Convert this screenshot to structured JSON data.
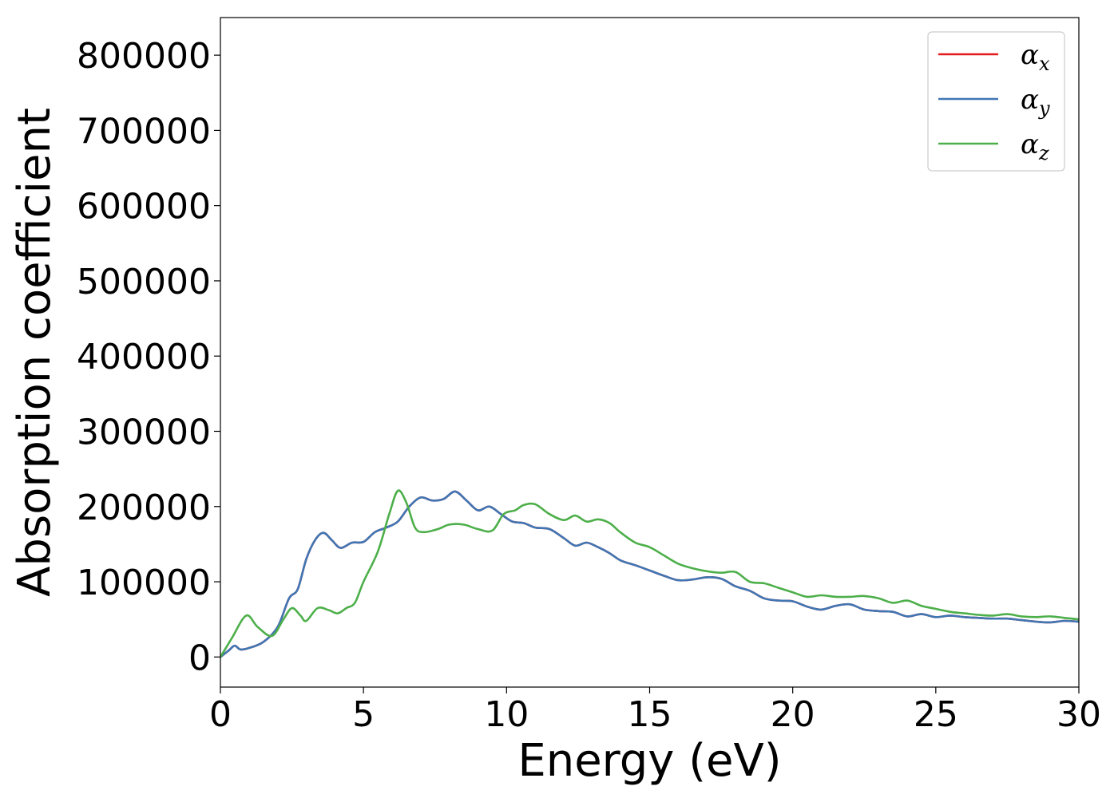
{
  "chart_data": {
    "type": "line",
    "title": "",
    "xlabel": "Energy (eV)",
    "ylabel": "Absorption coefficient",
    "xlim": [
      0,
      30
    ],
    "ylim": [
      -40000,
      850000
    ],
    "xticks": [
      0,
      5,
      10,
      15,
      20,
      25,
      30
    ],
    "yticks": [
      0,
      100000,
      200000,
      300000,
      400000,
      500000,
      600000,
      700000,
      800000
    ],
    "grid": false,
    "legend_position": "top-right",
    "series": [
      {
        "name": "αx",
        "legend_symbol": "α",
        "legend_sub": "x",
        "color": "#e41a1c",
        "x": [
          0,
          0.3,
          0.5,
          0.7,
          1.0,
          1.5,
          2.0,
          2.4,
          2.7,
          3.0,
          3.3,
          3.6,
          3.9,
          4.2,
          4.6,
          5.0,
          5.4,
          5.8,
          6.2,
          6.6,
          7.0,
          7.4,
          7.8,
          8.2,
          8.6,
          9.0,
          9.4,
          9.8,
          10.2,
          10.6,
          11.0,
          11.5,
          12.0,
          12.4,
          12.8,
          13.2,
          13.6,
          14.0,
          14.5,
          15.0,
          15.5,
          16.0,
          16.5,
          17.0,
          17.5,
          18.0,
          18.5,
          19.0,
          19.5,
          20.0,
          20.5,
          21.0,
          21.5,
          22.0,
          22.5,
          23.0,
          23.5,
          24.0,
          24.5,
          25.0,
          25.5,
          26.0,
          26.5,
          27.0,
          27.5,
          28.0,
          28.5,
          29.0,
          29.5,
          30.0
        ],
        "y": [
          0,
          9000,
          15000,
          10000,
          12000,
          20000,
          40000,
          78000,
          90000,
          130000,
          155000,
          165000,
          155000,
          145000,
          152000,
          153000,
          166000,
          172000,
          180000,
          200000,
          212000,
          208000,
          210000,
          220000,
          208000,
          195000,
          200000,
          190000,
          180000,
          178000,
          172000,
          170000,
          158000,
          148000,
          152000,
          146000,
          138000,
          128000,
          122000,
          115000,
          108000,
          102000,
          103000,
          106000,
          104000,
          94000,
          88000,
          78000,
          75000,
          74000,
          67000,
          63000,
          68000,
          70000,
          63000,
          61000,
          60000,
          54000,
          57000,
          53000,
          55000,
          53000,
          52000,
          51000,
          51000,
          49000,
          47000,
          46000,
          48000,
          47000
        ]
      },
      {
        "name": "αy",
        "legend_symbol": "α",
        "legend_sub": "y",
        "color": "#3f76b4",
        "x": [
          0,
          0.3,
          0.5,
          0.7,
          1.0,
          1.5,
          2.0,
          2.4,
          2.7,
          3.0,
          3.3,
          3.6,
          3.9,
          4.2,
          4.6,
          5.0,
          5.4,
          5.8,
          6.2,
          6.6,
          7.0,
          7.4,
          7.8,
          8.2,
          8.6,
          9.0,
          9.4,
          9.8,
          10.2,
          10.6,
          11.0,
          11.5,
          12.0,
          12.4,
          12.8,
          13.2,
          13.6,
          14.0,
          14.5,
          15.0,
          15.5,
          16.0,
          16.5,
          17.0,
          17.5,
          18.0,
          18.5,
          19.0,
          19.5,
          20.0,
          20.5,
          21.0,
          21.5,
          22.0,
          22.5,
          23.0,
          23.5,
          24.0,
          24.5,
          25.0,
          25.5,
          26.0,
          26.5,
          27.0,
          27.5,
          28.0,
          28.5,
          29.0,
          29.5,
          30.0
        ],
        "y": [
          0,
          9000,
          15000,
          10000,
          12000,
          20000,
          40000,
          78000,
          90000,
          130000,
          155000,
          165000,
          155000,
          145000,
          152000,
          153000,
          166000,
          172000,
          180000,
          200000,
          212000,
          208000,
          210000,
          220000,
          208000,
          195000,
          200000,
          190000,
          180000,
          178000,
          172000,
          170000,
          158000,
          148000,
          152000,
          146000,
          138000,
          128000,
          122000,
          115000,
          108000,
          102000,
          103000,
          106000,
          104000,
          94000,
          88000,
          78000,
          75000,
          74000,
          67000,
          63000,
          68000,
          70000,
          63000,
          61000,
          60000,
          54000,
          57000,
          53000,
          55000,
          53000,
          52000,
          51000,
          51000,
          49000,
          47000,
          46000,
          48000,
          47000
        ]
      },
      {
        "name": "αz",
        "legend_symbol": "α",
        "legend_sub": "z",
        "color": "#4daf4a",
        "x": [
          0,
          0.4,
          0.9,
          1.3,
          1.8,
          2.2,
          2.5,
          2.8,
          3.0,
          3.4,
          3.8,
          4.1,
          4.4,
          4.7,
          5.0,
          5.5,
          5.9,
          6.2,
          6.5,
          6.8,
          7.1,
          7.6,
          8.0,
          8.5,
          9.0,
          9.5,
          9.9,
          10.3,
          10.6,
          11.0,
          11.5,
          12.0,
          12.4,
          12.8,
          13.2,
          13.6,
          14.0,
          14.5,
          15.0,
          15.5,
          16.0,
          16.5,
          17.0,
          17.5,
          18.0,
          18.5,
          19.0,
          19.5,
          20.0,
          20.5,
          21.0,
          21.5,
          22.0,
          22.5,
          23.0,
          23.5,
          24.0,
          24.5,
          25.0,
          25.5,
          26.0,
          26.5,
          27.0,
          27.5,
          28.0,
          28.5,
          29.0,
          29.5,
          30.0
        ],
        "y": [
          0,
          25000,
          55000,
          40000,
          28000,
          50000,
          65000,
          55000,
          48000,
          65000,
          62000,
          58000,
          65000,
          72000,
          100000,
          140000,
          190000,
          221000,
          205000,
          172000,
          166000,
          170000,
          176000,
          176000,
          170000,
          168000,
          190000,
          195000,
          202000,
          203000,
          190000,
          182000,
          188000,
          180000,
          183000,
          178000,
          165000,
          152000,
          146000,
          135000,
          124000,
          118000,
          114000,
          112000,
          113000,
          100000,
          98000,
          92000,
          86000,
          80000,
          82000,
          80000,
          80000,
          81000,
          78000,
          72000,
          75000,
          68000,
          64000,
          60000,
          58000,
          56000,
          55000,
          57000,
          54000,
          53000,
          54000,
          52000,
          50000
        ]
      }
    ]
  }
}
